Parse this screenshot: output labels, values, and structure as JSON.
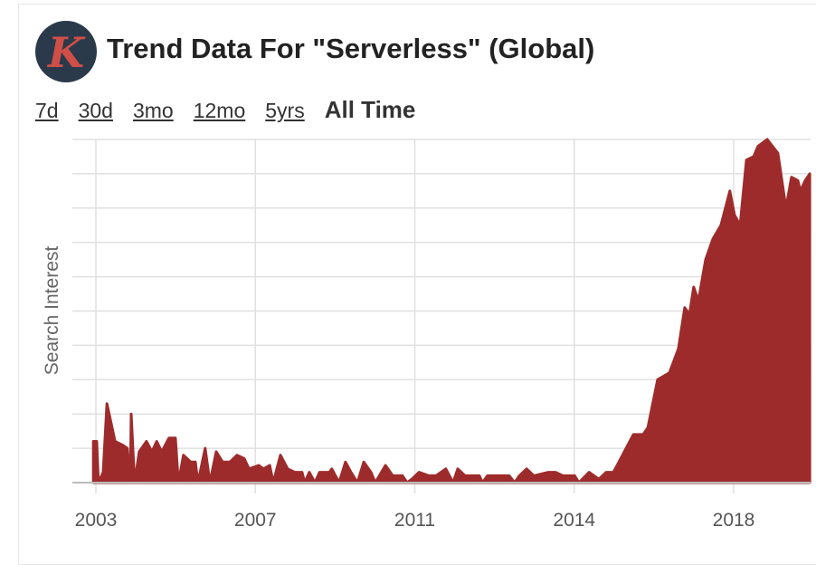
{
  "header": {
    "title": "Trend Data For \"Serverless\" (Global)",
    "logo_letter": "K"
  },
  "ranges": [
    {
      "label": "7d",
      "active": false
    },
    {
      "label": "30d",
      "active": false
    },
    {
      "label": "3mo",
      "active": false
    },
    {
      "label": "12mo",
      "active": false
    },
    {
      "label": "5yrs",
      "active": false
    },
    {
      "label": "All Time",
      "active": true
    }
  ],
  "colors": {
    "fill": "#9e2b2b",
    "logo_bg": "#2b3a4b",
    "logo_letter": "#cf4f48",
    "grid": "#e0e0e0"
  },
  "chart_data": {
    "type": "area",
    "title": "",
    "xlabel": "",
    "ylabel": "Search Interest",
    "ylim": [
      0,
      100
    ],
    "grid": true,
    "y_gridline_step": 10,
    "y_tick_labels_shown": false,
    "x_ticks": [
      {
        "value": 2003,
        "label": "2003"
      },
      {
        "value": 2006.75,
        "label": "2007"
      },
      {
        "value": 2010.5,
        "label": "2011"
      },
      {
        "value": 2014.25,
        "label": "2014"
      },
      {
        "value": 2018,
        "label": "2018"
      }
    ],
    "xlim": [
      2002.94,
      2019.79
    ],
    "series": [
      {
        "points": [
          [
            2002.94,
            12
          ],
          [
            2003.02,
            12
          ],
          [
            2003.06,
            0
          ],
          [
            2003.17,
            3
          ],
          [
            2003.26,
            23
          ],
          [
            2003.45,
            12
          ],
          [
            2003.62,
            11
          ],
          [
            2003.74,
            10
          ],
          [
            2003.81,
            0
          ],
          [
            2003.83,
            20
          ],
          [
            2003.91,
            0
          ],
          [
            2004.02,
            9
          ],
          [
            2004.19,
            12
          ],
          [
            2004.32,
            9
          ],
          [
            2004.43,
            12
          ],
          [
            2004.55,
            9
          ],
          [
            2004.72,
            13
          ],
          [
            2004.87,
            13
          ],
          [
            2004.94,
            0
          ],
          [
            2005.06,
            8
          ],
          [
            2005.23,
            6
          ],
          [
            2005.34,
            6
          ],
          [
            2005.4,
            0
          ],
          [
            2005.57,
            10
          ],
          [
            2005.68,
            0
          ],
          [
            2005.83,
            9
          ],
          [
            2005.98,
            6
          ],
          [
            2006.15,
            6
          ],
          [
            2006.32,
            8
          ],
          [
            2006.49,
            7
          ],
          [
            2006.6,
            4
          ],
          [
            2006.83,
            5
          ],
          [
            2006.94,
            4
          ],
          [
            2007.09,
            5
          ],
          [
            2007.17,
            0
          ],
          [
            2007.34,
            8
          ],
          [
            2007.51,
            4
          ],
          [
            2007.68,
            3
          ],
          [
            2007.85,
            3
          ],
          [
            2007.91,
            0
          ],
          [
            2008.02,
            3
          ],
          [
            2008.15,
            0
          ],
          [
            2008.26,
            3
          ],
          [
            2008.49,
            3
          ],
          [
            2008.55,
            4
          ],
          [
            2008.72,
            0
          ],
          [
            2008.87,
            6
          ],
          [
            2009.0,
            3
          ],
          [
            2009.15,
            0
          ],
          [
            2009.3,
            6
          ],
          [
            2009.47,
            3
          ],
          [
            2009.57,
            0
          ],
          [
            2009.81,
            5
          ],
          [
            2009.98,
            2
          ],
          [
            2010.21,
            2
          ],
          [
            2010.32,
            0
          ],
          [
            2010.43,
            1
          ],
          [
            2010.6,
            3
          ],
          [
            2010.83,
            2
          ],
          [
            2011.0,
            2
          ],
          [
            2011.23,
            4
          ],
          [
            2011.4,
            0
          ],
          [
            2011.51,
            4
          ],
          [
            2011.68,
            2
          ],
          [
            2012.02,
            2
          ],
          [
            2012.09,
            0
          ],
          [
            2012.21,
            2
          ],
          [
            2012.72,
            2
          ],
          [
            2012.85,
            0
          ],
          [
            2012.96,
            2
          ],
          [
            2013.13,
            4
          ],
          [
            2013.3,
            2
          ],
          [
            2013.64,
            3
          ],
          [
            2013.81,
            3
          ],
          [
            2013.98,
            2
          ],
          [
            2014.26,
            2
          ],
          [
            2014.36,
            0
          ],
          [
            2014.6,
            3
          ],
          [
            2014.83,
            1
          ],
          [
            2015.0,
            3
          ],
          [
            2015.17,
            3
          ],
          [
            2015.3,
            6
          ],
          [
            2015.47,
            10
          ],
          [
            2015.64,
            14
          ],
          [
            2015.87,
            14
          ],
          [
            2015.98,
            16
          ],
          [
            2016.21,
            30
          ],
          [
            2016.49,
            32
          ],
          [
            2016.7,
            39
          ],
          [
            2016.85,
            51
          ],
          [
            2016.96,
            49
          ],
          [
            2017.06,
            57
          ],
          [
            2017.17,
            53
          ],
          [
            2017.34,
            65
          ],
          [
            2017.51,
            71
          ],
          [
            2017.7,
            75
          ],
          [
            2017.91,
            85
          ],
          [
            2018.02,
            78
          ],
          [
            2018.15,
            75
          ],
          [
            2018.3,
            94
          ],
          [
            2018.47,
            95
          ],
          [
            2018.57,
            98
          ],
          [
            2018.79,
            100
          ],
          [
            2019.04,
            96
          ],
          [
            2019.23,
            80
          ],
          [
            2019.36,
            89
          ],
          [
            2019.51,
            88
          ],
          [
            2019.57,
            85
          ],
          [
            2019.68,
            88
          ],
          [
            2019.79,
            90
          ]
        ]
      }
    ]
  }
}
